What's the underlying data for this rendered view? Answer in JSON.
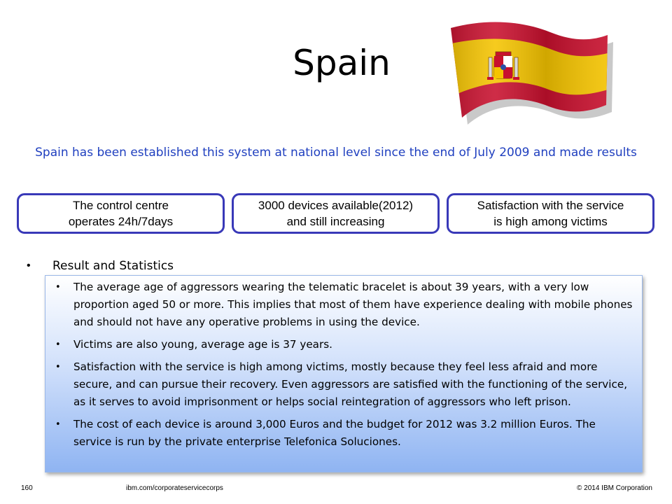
{
  "slide": {
    "title": "Spain",
    "subtitle": "Spain has been established this system at national level since the end of July 2009 and made results"
  },
  "flag": {
    "country": "Spain",
    "colors": {
      "red": "#c8102e",
      "yellow": "#f5c400"
    }
  },
  "key_boxes": [
    {
      "line1": "The control centre",
      "line2": "operates 24h/7days"
    },
    {
      "line1": "3000 devices available(2012)",
      "line2": "and still increasing"
    },
    {
      "line1": "Satisfaction with the service",
      "line2": "is high among victims"
    }
  ],
  "section": {
    "bullet": "•",
    "heading": "Result and Statistics"
  },
  "stats": [
    "The average age of aggressors wearing the telematic bracelet is about 39 years, with a very low proportion aged 50 or more. This implies that most of them have experience dealing with mobile phones and should not have any operative problems in using the device.",
    "Victims are also young, average age is 37 years.",
    "Satisfaction with the service is high among victims, mostly because they feel less afraid and more secure, and can pursue their recovery. Even aggressors are satisfied with the functioning of the service, as it serves to avoid imprisonment or helps social reintegration of aggressors who left prison.",
    "The cost of each device is around 3,000 Euros and the budget for 2012 was 3.2 million Euros. The service is run by the private enterprise Telefonica Soluciones."
  ],
  "footer": {
    "page_number": "160",
    "url": "ibm.com/corporateservicecorps",
    "copyright": "© 2014 IBM Corporation"
  }
}
